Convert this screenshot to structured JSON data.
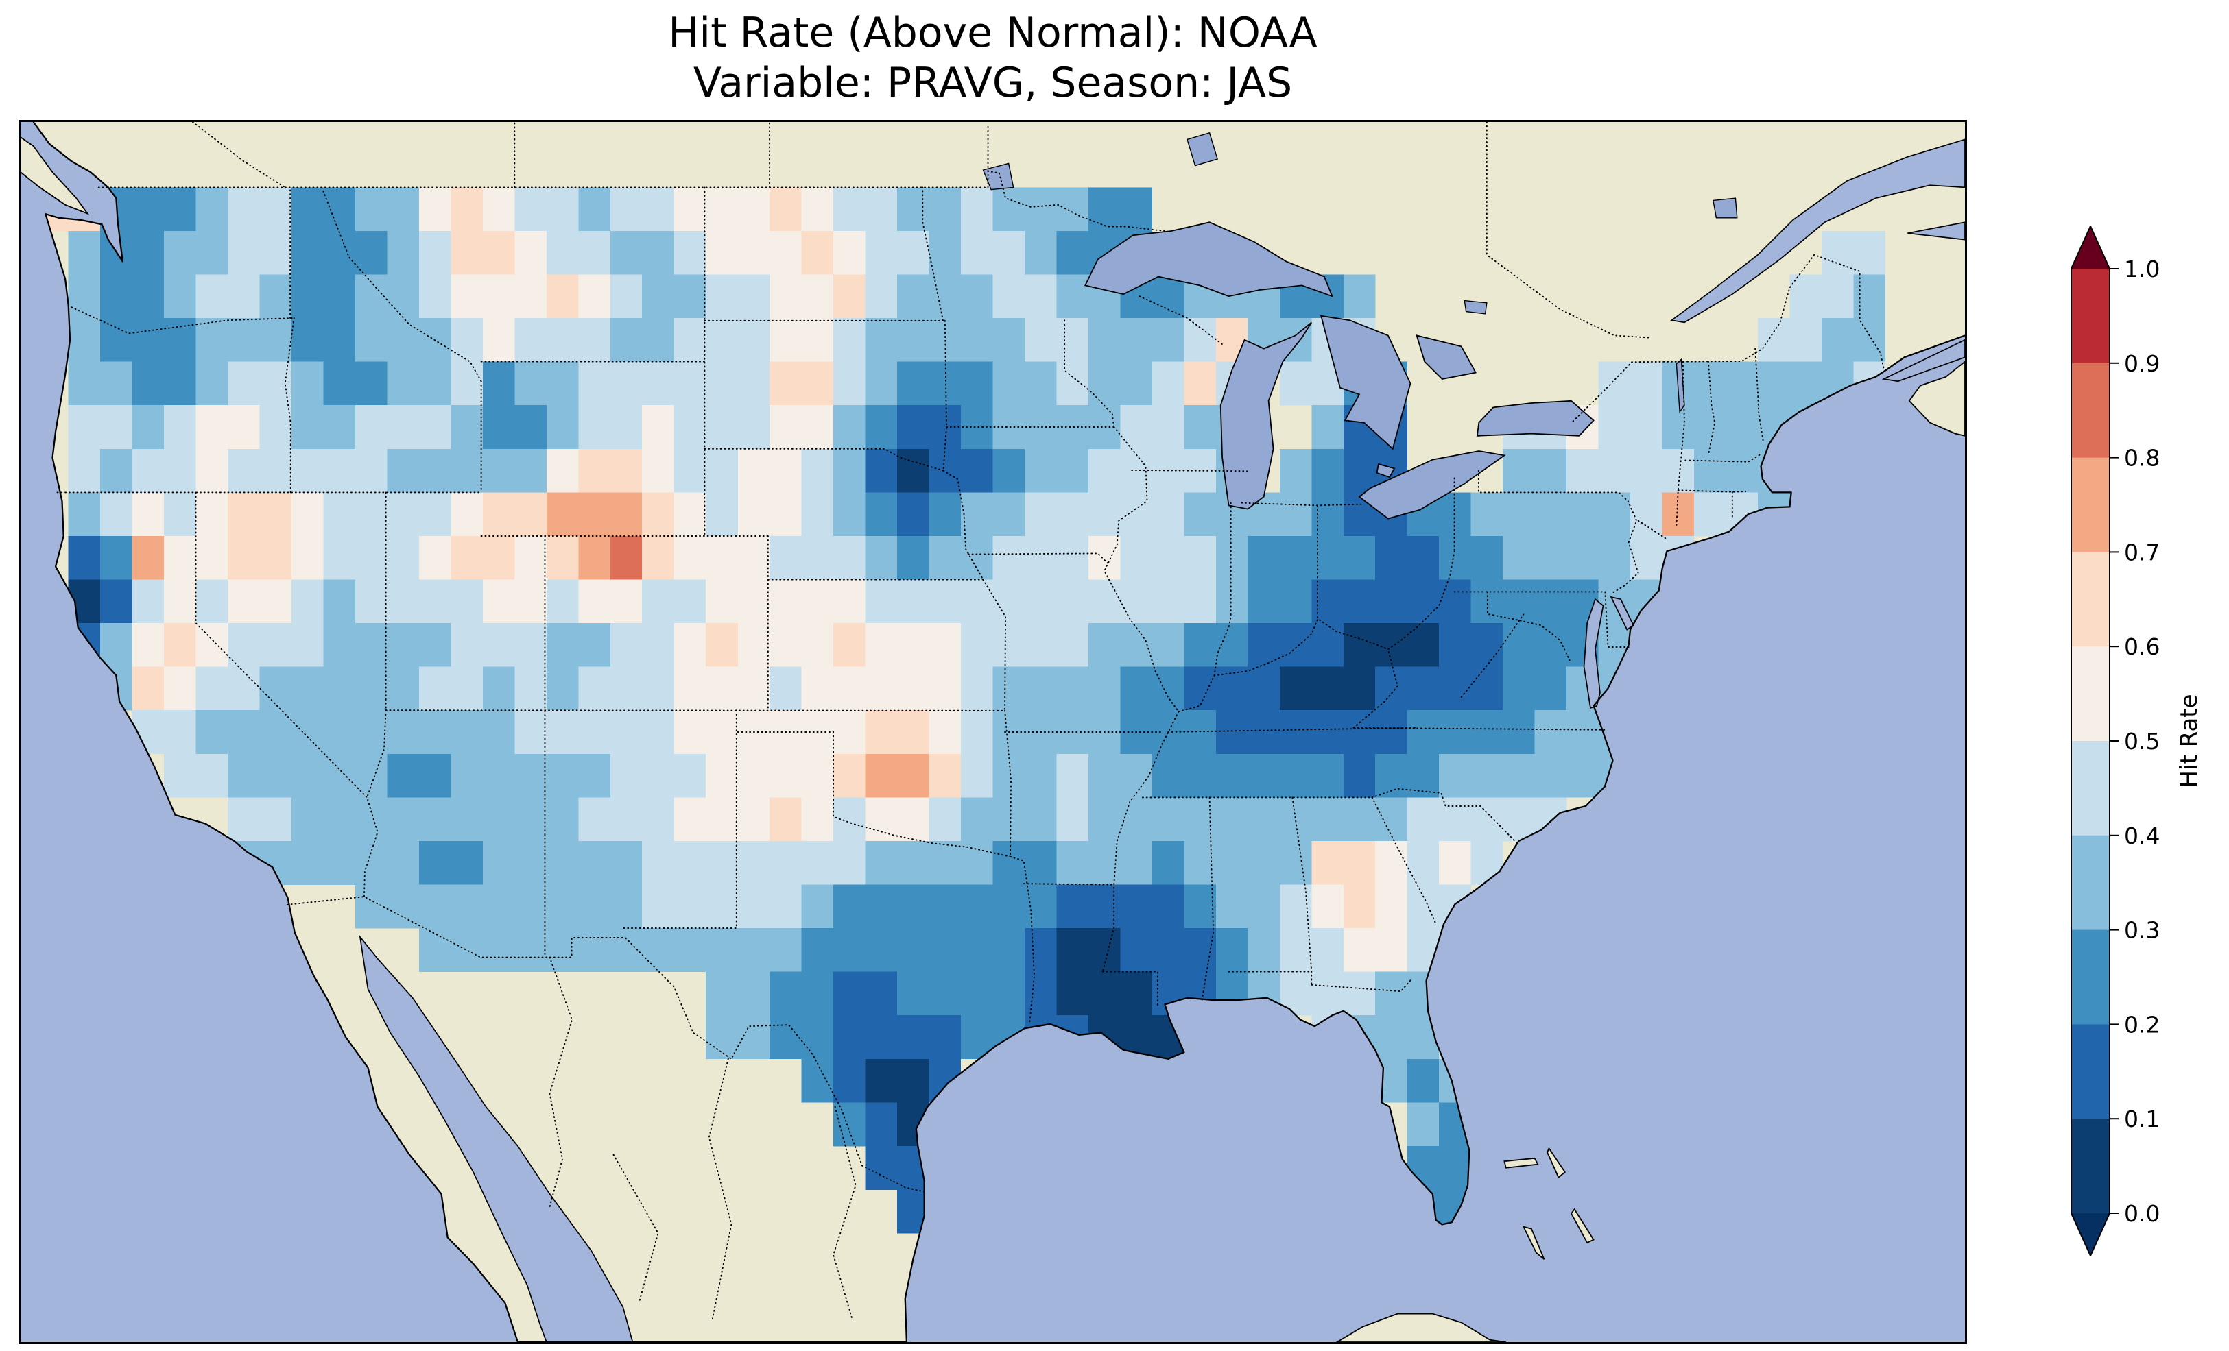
{
  "title": {
    "line1": "Hit Rate (Above Normal): NOAA",
    "line2": "Variable: PRAVG, Season: JAS"
  },
  "colorbar": {
    "label": "Hit Rate",
    "ticks": [
      "1.0",
      "0.9",
      "0.8",
      "0.7",
      "0.6",
      "0.5",
      "0.4",
      "0.3",
      "0.2",
      "0.1",
      "0.0"
    ],
    "band_colors": [
      "#0d3e71",
      "#2166ac",
      "#3f8fc0",
      "#87bedb",
      "#c7dfec",
      "#f6efe8",
      "#fbdcc7",
      "#f4a985",
      "#dd6e57",
      "#bb2b33"
    ],
    "under_color": "#053061",
    "over_color": "#67001f"
  },
  "map_colors": {
    "ocean": "#a3b5da",
    "land": "#ece9d2",
    "lake": "#93a9d4",
    "coastline": "#000000"
  },
  "chart_data": {
    "type": "heatmap",
    "title": "Hit Rate (Above Normal): NOAA",
    "subtitle": "Variable: PRAVG, Season: JAS",
    "dataset": "NOAA",
    "variable": "PRAVG",
    "season": "JAS",
    "metric": "Hit Rate (Above Normal)",
    "value_label": "Hit Rate",
    "value_range": [
      0,
      1
    ],
    "bin_size": 0.1,
    "region": "Contiguous United States",
    "colorbar_ticks": [
      1.0,
      0.9,
      0.8,
      0.7,
      0.6,
      0.5,
      0.4,
      0.3,
      0.2,
      0.1,
      0.0
    ],
    "grid": {
      "lon_start": -125,
      "lat_start": 50,
      "cell_degrees": 1,
      "encoding": "Each character is one 1-degree cell, west-to-east per row, rows north-to-south from lat 50 to lat 24; digit d means hit-rate bin [d/10,(d+1)/10); '.' means no data",
      "rows": [
        [
          "..........",
          "..........",
          "..........",
          "..........",
          "..........",
          "........."
        ],
        [
          "6622234422",
          "3356544344",
          "5556544334",
          "33322.....",
          "..........",
          "........."
        ],
        [
          ".322334422",
          "2346654433",
          "4555654434",
          "43222.3...",
          "..........",
          "......44."
        ],
        [
          ".322344322",
          "3345556543",
          "3445564333",
          "4433223332",
          "23........",
          ".....443."
        ],
        [
          ".322233322",
          "3334544433",
          "4445543333",
          "3443334633",
          "44........",
          "....4433."
        ],
        [
          ".332234432",
          "2334233444",
          "4446643222",
          "33433464.4",
          "422......4",
          "43333334."
        ],
        [
          ".443455433",
          "4443223445",
          "4445532112",
          "33334433..",
          "311...4454",
          "4333334.."
        ],
        [
          ".434454444",
          "4333335665",
          "4455431011",
          "23344443.3",
          "211...3344",
          "443333..."
        ],
        [
          ".345456654",
          "4445667776",
          "5455432123",
          "3444443333",
          "2112233333",
          "474433..."
        ],
        [
          ".127556654",
          "4456656786",
          "5554443233",
          "4445444322",
          "2211223333",
          "44......."
        ],
        [
          ".014545543",
          "4444554554",
          "4555554444",
          "4444444322",
          "1111122223",
          "3........"
        ],
        [
          ".135654443",
          "3334443344",
          "5655565554",
          "4443332211",
          "1000112223",
          "........."
        ],
        [
          ".236544333",
          "3344343444",
          "5554555554",
          "3333221110",
          "0011112233",
          "........."
        ],
        [
          "...4433333",
          "3333344444",
          "5555556654",
          "3333222111",
          "1112222333",
          "........."
        ],
        [
          "....443333",
          "3223333344",
          "4555567764",
          "3343322222",
          "2122333333",
          "........."
        ],
        [
          "......4433",
          "3333333444",
          "5556545543",
          "3343333333",
          "33344444..",
          "........."
        ],
        [
          "......3333",
          "3322333334",
          "4444443333",
          "2233323333",
          "665454....",
          "........."
        ],
        [
          "..........",
          "3333333334",
          "4444322222",
          "2211112334",
          "56544.....",
          "........."
        ],
        [
          "..........",
          "..33333333",
          "3333222222",
          "2100111234",
          "45544.....",
          "........."
        ],
        [
          "..........",
          "..........",
          ".332211222",
          "2100011234",
          "44334.....",
          "........."
        ],
        [
          "..........",
          "..........",
          ".332211112",
          "211000....",
          "43334.....",
          "........."
        ],
        [
          "..........",
          "..........",
          "....21001.",
          "..........",
          "..3233....",
          "........."
        ],
        [
          "..........",
          "..........",
          ".....210..",
          "..........",
          "...323....",
          "........."
        ],
        [
          "..........",
          "..........",
          "......11..",
          "..........",
          "...22.....",
          "........."
        ],
        [
          "..........",
          "..........",
          ".......1..",
          "..........",
          "...22.....",
          "........."
        ],
        [
          "..........",
          "..........",
          "..........",
          "..........",
          "...55....",
          "........."
        ]
      ]
    }
  }
}
